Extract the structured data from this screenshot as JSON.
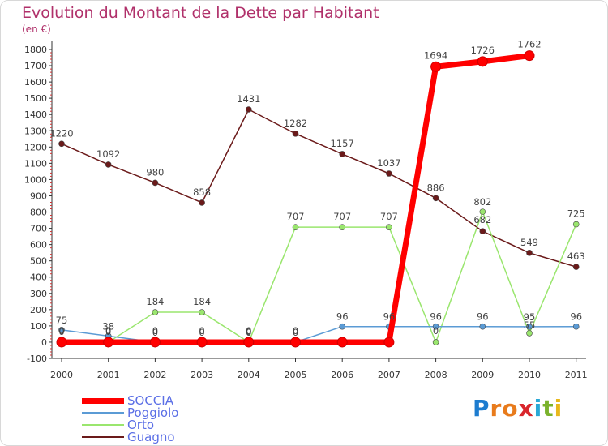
{
  "title": "Evolution du Montant de la Dette par Habitant",
  "subtitle": "(en €)",
  "logo": {
    "text": "Proxiti",
    "letters": [
      "P",
      "r",
      "o",
      "x",
      "i",
      "t",
      "i"
    ],
    "colors": [
      "#1d7ccf",
      "#e87b1c",
      "#e87b1c",
      "#d9262c",
      "#2aa8d6",
      "#7ab22c",
      "#e8b81c"
    ]
  },
  "chart_data": {
    "type": "line",
    "title": "Evolution du Montant de la Dette par Habitant",
    "ylabel": "(en €)",
    "x": [
      "2000",
      "2001",
      "2002",
      "2003",
      "2004",
      "2005",
      "2006",
      "2007",
      "2008",
      "2009",
      "2010",
      "2011"
    ],
    "ylim": [
      -100,
      1800
    ],
    "yticks": [
      "-100",
      "0",
      "100",
      "200",
      "300",
      "400",
      "500",
      "600",
      "700",
      "800",
      "900",
      "1000",
      "1100",
      "1200",
      "1300",
      "1400",
      "1500",
      "1600",
      "1700",
      "1800"
    ],
    "grid": false,
    "legend_position": "bottom-left",
    "series": [
      {
        "name": "SOCCIA",
        "color": "#ff0000",
        "values": [
          0,
          0,
          0,
          0,
          0,
          0,
          0,
          0,
          1694,
          1726,
          1762,
          null
        ],
        "labels": [
          "0",
          "0",
          "0",
          "0",
          "0",
          "0",
          "",
          "",
          "1694",
          "1726",
          "1762",
          ""
        ]
      },
      {
        "name": "Poggiolo",
        "color": "#5b9bd5",
        "values": [
          75,
          38,
          0,
          0,
          0,
          0,
          96,
          96,
          96,
          96,
          95,
          96
        ],
        "labels": [
          "75",
          "38",
          "0",
          "0",
          "0",
          "0",
          "96",
          "96",
          "96",
          "96",
          "95",
          "96"
        ]
      },
      {
        "name": "Orto",
        "color": "#9ae66e",
        "values": [
          0,
          0,
          184,
          184,
          0,
          707,
          707,
          707,
          0,
          802,
          55,
          725
        ],
        "labels": [
          "0",
          "0",
          "184",
          "184",
          "0",
          "707",
          "707",
          "707",
          "0",
          "802",
          "55",
          "725"
        ]
      },
      {
        "name": "Guagno",
        "color": "#6b1a1a",
        "values": [
          1220,
          1092,
          980,
          858,
          1431,
          1282,
          1157,
          1037,
          886,
          682,
          549,
          463
        ],
        "labels": [
          "1220",
          "1092",
          "980",
          "858",
          "1431",
          "1282",
          "1157",
          "1037",
          "886",
          "682",
          "549",
          "463"
        ]
      }
    ]
  }
}
